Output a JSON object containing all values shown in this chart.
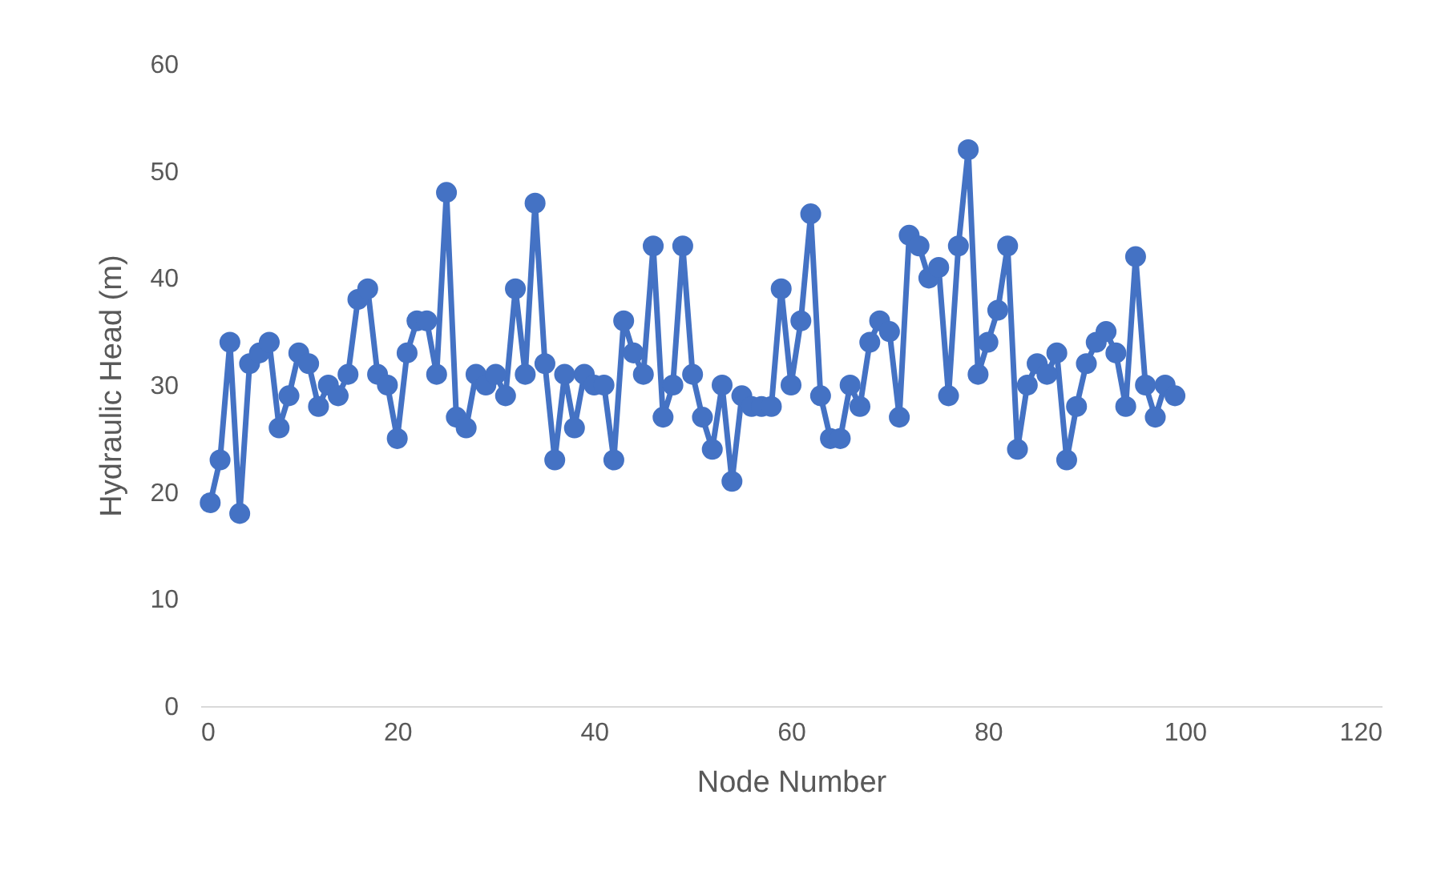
{
  "chart_data": {
    "type": "line",
    "xlabel": "Node Number",
    "ylabel": "Hydraulic Head (m)",
    "x": [
      1,
      2,
      3,
      4,
      5,
      6,
      7,
      8,
      9,
      10,
      11,
      12,
      13,
      14,
      15,
      16,
      17,
      18,
      19,
      20,
      21,
      22,
      23,
      24,
      25,
      26,
      27,
      28,
      29,
      30,
      31,
      32,
      33,
      34,
      35,
      36,
      37,
      38,
      39,
      40,
      41,
      42,
      43,
      44,
      45,
      46,
      47,
      48,
      49,
      50,
      51,
      52,
      53,
      54,
      55,
      56,
      57,
      58,
      59,
      60,
      61,
      62,
      63,
      64,
      65,
      66,
      67,
      68,
      69,
      70,
      71,
      72,
      73,
      74,
      75,
      76,
      77,
      78,
      79,
      80,
      81,
      82,
      83,
      84,
      85,
      86,
      87,
      88,
      89,
      90,
      91,
      92,
      93,
      94,
      95,
      96,
      97,
      98,
      99
    ],
    "series": [
      {
        "color": "#4472c4",
        "values": [
          19,
          23,
          34,
          18,
          32,
          33,
          34,
          26,
          29,
          33,
          32,
          28,
          30,
          29,
          31,
          38,
          39,
          31,
          30,
          25,
          33,
          36,
          36,
          31,
          48,
          27,
          26,
          31,
          30,
          31,
          29,
          39,
          31,
          47,
          32,
          23,
          31,
          26,
          31,
          30,
          30,
          23,
          36,
          33,
          31,
          43,
          27,
          30,
          43,
          31,
          27,
          24,
          30,
          21,
          29,
          28,
          28,
          28,
          39,
          30,
          36,
          46,
          29,
          25,
          25,
          30,
          28,
          34,
          36,
          35,
          27,
          44,
          43,
          40,
          41,
          29,
          43,
          52,
          31,
          34,
          37,
          43,
          24,
          30,
          32,
          31,
          33,
          23,
          28,
          32,
          34,
          35,
          33,
          28,
          42,
          30,
          27,
          30,
          29
        ]
      }
    ],
    "xlim": [
      0,
      120
    ],
    "xticks": [
      0,
      20,
      40,
      60,
      80,
      100,
      120
    ],
    "ylim": [
      0,
      60
    ],
    "yticks": [
      0,
      10,
      20,
      30,
      40,
      50,
      60
    ],
    "grid": false,
    "legend": false,
    "marker": "circle",
    "line_style": "solid"
  }
}
